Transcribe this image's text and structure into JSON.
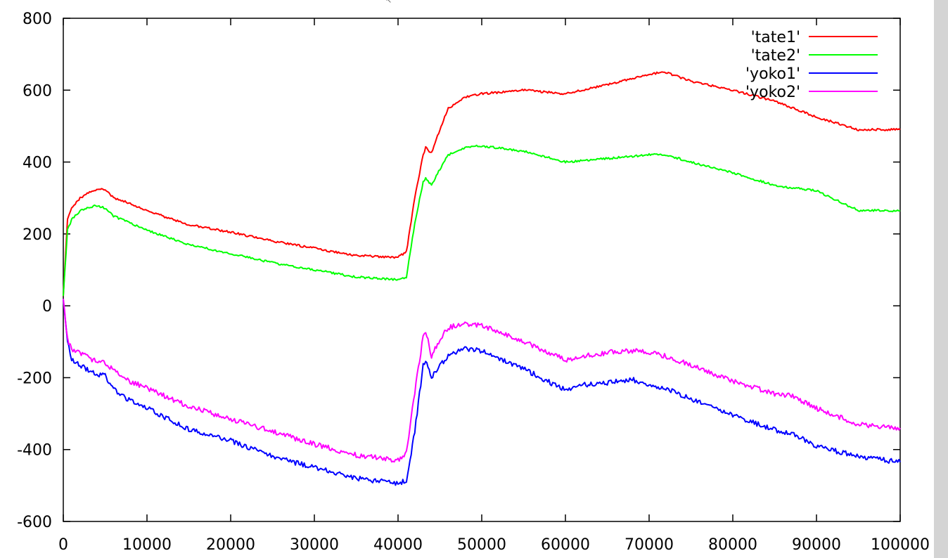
{
  "chart_data": {
    "type": "line",
    "title": "",
    "xlabel": "",
    "ylabel": "",
    "xlim": [
      0,
      100000
    ],
    "ylim": [
      -600,
      800
    ],
    "xticks": [
      0,
      10000,
      20000,
      30000,
      40000,
      50000,
      60000,
      70000,
      80000,
      90000,
      100000
    ],
    "xtick_labels": [
      "0",
      "10000",
      "20000",
      "30000",
      "40000",
      "50000",
      "60000",
      "70000",
      "80000",
      "90000",
      "100000"
    ],
    "yticks": [
      -600,
      -400,
      -200,
      0,
      200,
      400,
      600,
      800
    ],
    "ytick_labels": [
      "-600",
      "-400",
      "-200",
      "0",
      "200",
      "400",
      "600",
      "800"
    ],
    "grid": false,
    "legend_position": "top-right",
    "series": [
      {
        "name": "'tate1'",
        "color": "#ff0000",
        "x": [
          0,
          500,
          1000,
          2000,
          3000,
          4000,
          5000,
          6000,
          8000,
          10000,
          15000,
          20000,
          25000,
          30000,
          35000,
          40000,
          41000,
          42000,
          43000,
          43300,
          44000,
          45000,
          46000,
          48000,
          50000,
          55000,
          60000,
          65000,
          70000,
          72000,
          75000,
          80000,
          85000,
          90000,
          95000,
          100000
        ],
        "y": [
          30,
          240,
          270,
          300,
          315,
          322,
          325,
          300,
          285,
          265,
          225,
          205,
          180,
          160,
          140,
          135,
          150,
          300,
          420,
          440,
          425,
          490,
          550,
          580,
          590,
          600,
          590,
          615,
          645,
          650,
          625,
          600,
          570,
          525,
          490,
          490
        ]
      },
      {
        "name": "'tate2'",
        "color": "#00ff00",
        "x": [
          0,
          500,
          1000,
          2000,
          3000,
          4000,
          5000,
          6000,
          8000,
          10000,
          15000,
          20000,
          25000,
          30000,
          35000,
          40000,
          41000,
          42000,
          43000,
          43300,
          44000,
          45000,
          46000,
          48000,
          50000,
          55000,
          60000,
          65000,
          70000,
          72000,
          75000,
          80000,
          85000,
          90000,
          95000,
          100000
        ],
        "y": [
          30,
          210,
          240,
          265,
          275,
          278,
          272,
          250,
          230,
          210,
          170,
          145,
          120,
          100,
          80,
          72,
          80,
          230,
          345,
          355,
          335,
          380,
          420,
          440,
          445,
          430,
          400,
          410,
          420,
          420,
          400,
          370,
          335,
          320,
          265,
          265
        ]
      },
      {
        "name": "'yoko1'",
        "color": "#0000ff",
        "x": [
          0,
          500,
          1000,
          2000,
          3000,
          4000,
          5000,
          6000,
          8000,
          10000,
          15000,
          20000,
          25000,
          30000,
          35000,
          40000,
          41000,
          42000,
          43000,
          43300,
          44000,
          45000,
          46000,
          48000,
          50000,
          55000,
          60000,
          62000,
          65000,
          68000,
          70000,
          72000,
          75000,
          80000,
          85000,
          87000,
          90000,
          95000,
          100000
        ],
        "y": [
          20,
          -100,
          -150,
          -165,
          -180,
          -190,
          -195,
          -230,
          -265,
          -285,
          -345,
          -375,
          -420,
          -450,
          -480,
          -495,
          -485,
          -350,
          -165,
          -150,
          -200,
          -165,
          -140,
          -120,
          -125,
          -175,
          -235,
          -220,
          -215,
          -205,
          -220,
          -230,
          -260,
          -305,
          -345,
          -355,
          -390,
          -420,
          -435
        ]
      },
      {
        "name": "'yoko2'",
        "color": "#ff00ff",
        "x": [
          0,
          500,
          1000,
          2000,
          3000,
          4000,
          5000,
          6000,
          8000,
          10000,
          15000,
          20000,
          25000,
          30000,
          35000,
          40000,
          41000,
          42000,
          43000,
          43300,
          44000,
          45000,
          46000,
          48000,
          50000,
          55000,
          60000,
          62000,
          65000,
          68000,
          70000,
          72000,
          75000,
          80000,
          85000,
          87000,
          90000,
          95000,
          100000
        ],
        "y": [
          20,
          -95,
          -120,
          -130,
          -145,
          -155,
          -160,
          -180,
          -210,
          -230,
          -280,
          -315,
          -350,
          -385,
          -415,
          -430,
          -410,
          -240,
          -85,
          -70,
          -140,
          -95,
          -60,
          -50,
          -55,
          -100,
          -150,
          -140,
          -130,
          -125,
          -130,
          -140,
          -165,
          -210,
          -245,
          -250,
          -285,
          -330,
          -340
        ]
      }
    ]
  }
}
